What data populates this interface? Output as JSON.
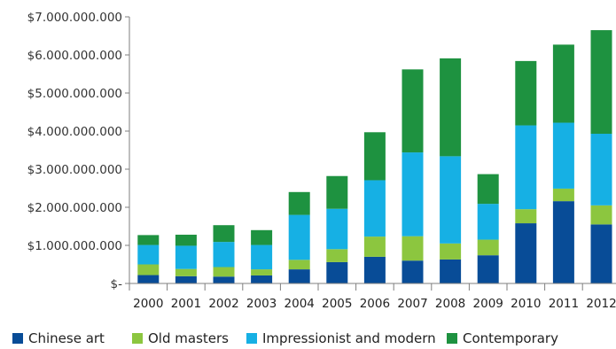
{
  "chart_data": {
    "type": "bar",
    "stacked": true,
    "categories": [
      "2000",
      "2001",
      "2002",
      "2003",
      "2004",
      "2005",
      "2006",
      "2007",
      "2008",
      "2009",
      "2010",
      "2011",
      "2012"
    ],
    "series": [
      {
        "name": "Chinese art",
        "color": "#084c97",
        "values": [
          220000000,
          190000000,
          180000000,
          210000000,
          370000000,
          560000000,
          700000000,
          600000000,
          630000000,
          740000000,
          1580000000,
          2160000000,
          1550000000
        ]
      },
      {
        "name": "Old masters",
        "color": "#8cc63f",
        "values": [
          280000000,
          190000000,
          250000000,
          160000000,
          250000000,
          340000000,
          530000000,
          640000000,
          420000000,
          410000000,
          370000000,
          330000000,
          500000000
        ]
      },
      {
        "name": "Impressionist and modern",
        "color": "#16b0e4",
        "values": [
          510000000,
          610000000,
          660000000,
          640000000,
          1180000000,
          1060000000,
          1480000000,
          2200000000,
          2290000000,
          940000000,
          2200000000,
          1730000000,
          1880000000
        ]
      },
      {
        "name": "Contemporary",
        "color": "#1e9240",
        "values": [
          260000000,
          290000000,
          440000000,
          390000000,
          600000000,
          860000000,
          1260000000,
          2180000000,
          2570000000,
          780000000,
          1690000000,
          2050000000,
          2720000000
        ]
      }
    ],
    "ylim": [
      0,
      7000000000
    ],
    "yticks": [
      {
        "value": 0,
        "label": "$-"
      },
      {
        "value": 1000000000,
        "label": "$1.000.000.000"
      },
      {
        "value": 2000000000,
        "label": "$2.000.000.000"
      },
      {
        "value": 3000000000,
        "label": "$3.000.000.000"
      },
      {
        "value": 4000000000,
        "label": "$4.000.000.000"
      },
      {
        "value": 5000000000,
        "label": "$5.000.000.000"
      },
      {
        "value": 6000000000,
        "label": "$6.000.000.000"
      },
      {
        "value": 7000000000,
        "label": "$7.000.000.000"
      }
    ],
    "grid": false,
    "legend": "bottom"
  }
}
